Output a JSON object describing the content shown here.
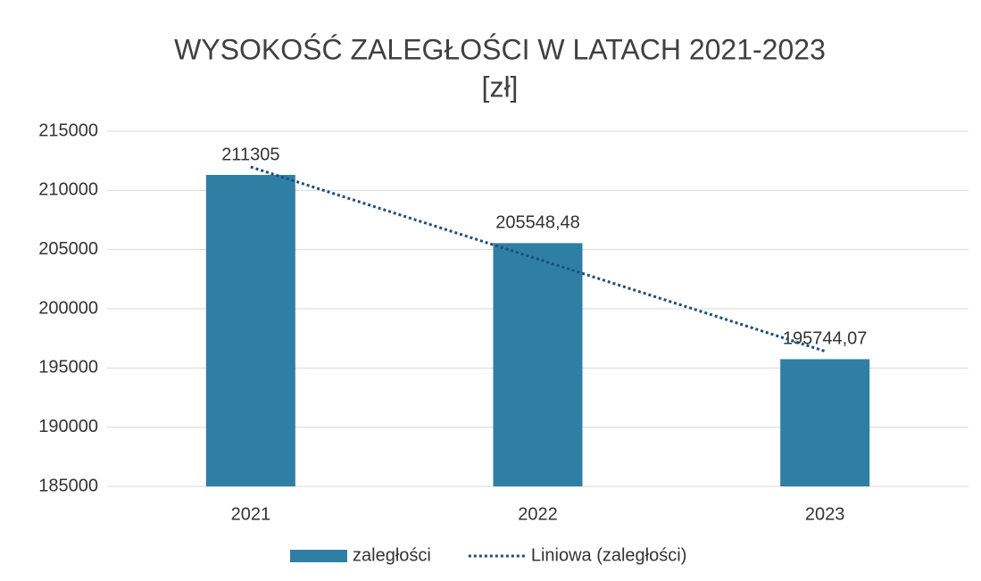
{
  "chart_data": {
    "type": "bar",
    "title": "WYSOKOŚĆ ZALEGŁOŚCI W LATACH 2021-2023",
    "subtitle": "[zł]",
    "categories": [
      "2021",
      "2022",
      "2023"
    ],
    "series": [
      {
        "name": "zaległości",
        "color": "#2f7fa5",
        "values": [
          211305,
          205548.48,
          195744.07
        ],
        "value_labels": [
          "211305",
          "205548,48",
          "195744,07"
        ]
      },
      {
        "name": "Liniowa (zaległości)",
        "type": "line",
        "color": "#1f4e79",
        "values": [
          211979.6,
          204199.2,
          196418.7
        ]
      }
    ],
    "ylim": [
      185000,
      215000
    ],
    "yticks": [
      185000,
      190000,
      195000,
      200000,
      205000,
      210000,
      215000
    ],
    "grid": true,
    "legend": "bottom"
  }
}
